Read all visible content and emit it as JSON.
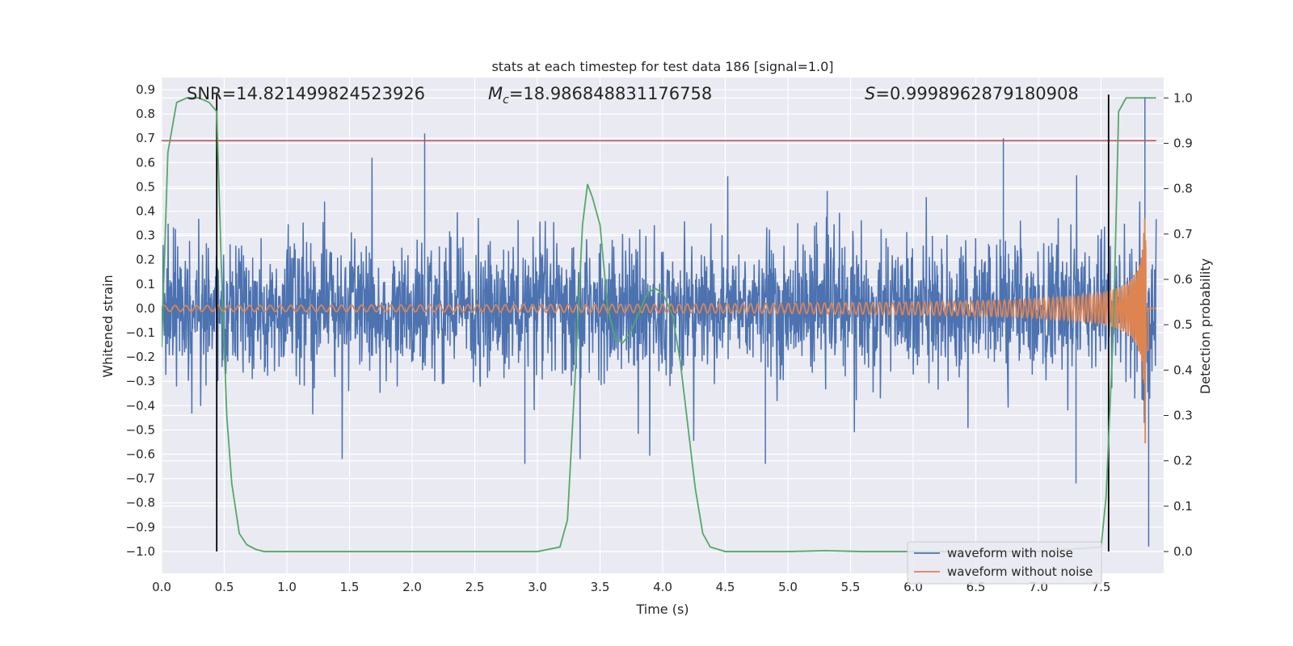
{
  "chart_data": {
    "type": "line",
    "title": "stats at each timestep for test data 186 [signal=1.0]",
    "xlabel": "Time (s)",
    "ylabel": "Whitened strain",
    "ylabel_right": "Detection probability",
    "xlim": [
      0.0,
      8.0
    ],
    "ylim": [
      -1.09,
      0.95
    ],
    "ylim_right": [
      -0.048,
      1.045
    ],
    "x_ticks": [
      0.0,
      0.5,
      1.0,
      1.5,
      2.0,
      2.5,
      3.0,
      3.5,
      4.0,
      4.5,
      5.0,
      5.5,
      6.0,
      6.5,
      7.0,
      7.5
    ],
    "x_tick_labels": [
      "0.0",
      "0.5",
      "1.0",
      "1.5",
      "2.0",
      "2.5",
      "3.0",
      "3.5",
      "4.0",
      "4.5",
      "5.0",
      "5.5",
      "6.0",
      "6.5",
      "7.0",
      "7.5"
    ],
    "y_ticks": [
      0.9,
      0.8,
      0.7,
      0.6,
      0.5,
      0.4,
      0.3,
      0.2,
      0.1,
      0.0,
      -0.1,
      -0.2,
      -0.3,
      -0.4,
      -0.5,
      -0.6,
      -0.7,
      -0.8,
      -0.9,
      -1.0
    ],
    "y_tick_labels": [
      "0.9",
      "0.8",
      "0.7",
      "0.6",
      "0.5",
      "0.4",
      "0.3",
      "0.2",
      "0.1",
      "0.0",
      "−0.1",
      "−0.2",
      "−0.3",
      "−0.4",
      "−0.5",
      "−0.6",
      "−0.7",
      "−0.8",
      "−0.9",
      "−1.0"
    ],
    "y_right_ticks": [
      1.0,
      0.9,
      0.8,
      0.7,
      0.6,
      0.5,
      0.4,
      0.3,
      0.2,
      0.1,
      0.0
    ],
    "y_right_tick_labels": [
      "1.0",
      "0.9",
      "0.8",
      "0.7",
      "0.6",
      "0.5",
      "0.4",
      "0.3",
      "0.2",
      "0.1",
      "0.0"
    ],
    "grid": true,
    "legend_position": "bottom-right",
    "annotations": {
      "snr": "SNR=14.821499824523926",
      "mc_symbol": "M",
      "mc_sub": "c",
      "mc_value": "=18.986848831176758",
      "s_symbol": "S",
      "s_value": "=0.9998962879180908"
    },
    "threshold_line": {
      "y": 0.69,
      "color": "#c44e52"
    },
    "vertical_markers": {
      "x": [
        0.44,
        7.56
      ],
      "y_range": [
        -1.0,
        0.88
      ],
      "color": "#000000"
    },
    "series": [
      {
        "name": "waveform with noise",
        "color": "#4c72b0",
        "description_envelope": {
          "t_start": 0.0,
          "t_end": 7.94,
          "typical_amplitude": 0.3,
          "spikes": [
            [
              2.1,
              0.72
            ],
            [
              6.72,
              0.7
            ],
            [
              7.3,
              -0.72
            ],
            [
              7.85,
              0.87
            ],
            [
              7.88,
              -0.98
            ],
            [
              2.9,
              -0.64
            ],
            [
              4.82,
              -0.64
            ]
          ]
        }
      },
      {
        "name": "waveform without noise",
        "color": "#dd8452",
        "description_envelope": {
          "t_start": 0.0,
          "t_end": 7.94,
          "amp_start": 0.012,
          "amp_peak": 0.82,
          "t_peak": 7.86
        }
      },
      {
        "name": "",
        "axis": "right",
        "color": "#55a868",
        "x": [
          0.0,
          0.05,
          0.12,
          0.2,
          0.3,
          0.38,
          0.44,
          0.48,
          0.52,
          0.56,
          0.62,
          0.68,
          0.75,
          0.82,
          1.0,
          1.5,
          2.0,
          2.5,
          3.0,
          3.18,
          3.24,
          3.3,
          3.36,
          3.4,
          3.44,
          3.5,
          3.56,
          3.62,
          3.68,
          3.74,
          3.8,
          3.88,
          3.94,
          4.0,
          4.08,
          4.14,
          4.2,
          4.26,
          4.32,
          4.38,
          4.5,
          5.0,
          5.3,
          5.6,
          6.0,
          7.0,
          7.5,
          7.54,
          7.6,
          7.64,
          7.7,
          7.8,
          7.94
        ],
        "y": [
          0.45,
          0.88,
          0.99,
          1.0,
          1.0,
          0.99,
          0.97,
          0.6,
          0.3,
          0.15,
          0.04,
          0.015,
          0.005,
          0.0,
          0.0,
          0.0,
          0.0,
          0.0,
          0.0,
          0.01,
          0.07,
          0.38,
          0.72,
          0.81,
          0.78,
          0.72,
          0.54,
          0.47,
          0.46,
          0.48,
          0.52,
          0.57,
          0.58,
          0.57,
          0.52,
          0.42,
          0.28,
          0.14,
          0.04,
          0.01,
          0.0,
          0.0,
          0.002,
          0.0,
          0.0,
          0.0,
          0.01,
          0.12,
          0.5,
          0.97,
          1.0,
          1.0,
          1.0
        ]
      }
    ]
  }
}
